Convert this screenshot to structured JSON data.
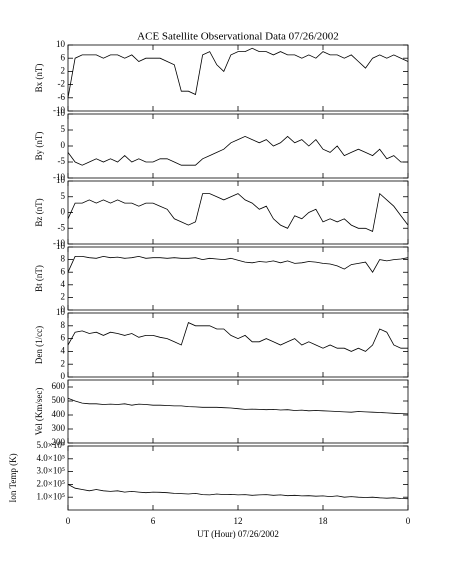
{
  "chart_data": {
    "type": "line",
    "title": "ACE Satellite Observational Data   07/26/2002",
    "xlabel": "UT (Hour)   07/26/2002",
    "xlim": [
      0,
      24
    ],
    "xticks": [
      0,
      6,
      12,
      18,
      {
        "value": 24,
        "label": "0"
      }
    ],
    "x": [
      0,
      0.5,
      1,
      1.5,
      2,
      2.5,
      3,
      3.5,
      4,
      4.5,
      5,
      5.5,
      6,
      6.5,
      7,
      7.5,
      8,
      8.5,
      9,
      9.5,
      10,
      10.5,
      11,
      11.5,
      12,
      12.5,
      13,
      13.5,
      14,
      14.5,
      15,
      15.5,
      16,
      16.5,
      17,
      17.5,
      18,
      18.5,
      19,
      19.5,
      20,
      20.5,
      21,
      21.5,
      22,
      22.5,
      23,
      23.5,
      24
    ],
    "color": "#000000",
    "panels": [
      {
        "ylabel": "Bx (nT)",
        "ylim": [
          -10,
          10
        ],
        "yticks": [
          -10,
          -6,
          -2,
          2,
          6,
          10
        ],
        "values": [
          -6,
          6,
          7,
          7,
          7,
          6,
          7,
          7,
          6,
          7,
          5,
          6,
          6,
          6,
          5,
          4,
          -4,
          -4,
          -5,
          7,
          8,
          4,
          2,
          7,
          8,
          8,
          9,
          8,
          8,
          7,
          8,
          7,
          7,
          6,
          7,
          6,
          8,
          7,
          7,
          6,
          7,
          5,
          3,
          6,
          7,
          6,
          7,
          6,
          5
        ]
      },
      {
        "ylabel": "By (nT)",
        "ylim": [
          -10,
          10
        ],
        "yticks": [
          -10,
          -5,
          0,
          5,
          10
        ],
        "values": [
          -2,
          -5,
          -6,
          -5,
          -4,
          -5,
          -4,
          -5,
          -3,
          -5,
          -4,
          -5,
          -5,
          -4,
          -4,
          -5,
          -6,
          -6,
          -6,
          -4,
          -3,
          -2,
          -1,
          1,
          2,
          3,
          2,
          1,
          2,
          0,
          1,
          3,
          1,
          2,
          0,
          2,
          -1,
          -2,
          0,
          -3,
          -2,
          -1,
          -2,
          -3,
          -1,
          -4,
          -3,
          -5,
          -5
        ]
      },
      {
        "ylabel": "Bz (nT)",
        "ylim": [
          -10,
          10
        ],
        "yticks": [
          -10,
          -5,
          0,
          5,
          10
        ],
        "values": [
          -2,
          3,
          3,
          4,
          3,
          4,
          3,
          4,
          3,
          3,
          2,
          3,
          3,
          2,
          1,
          -2,
          -3,
          -4,
          -3,
          6,
          6,
          5,
          4,
          5,
          6,
          4,
          3,
          1,
          2,
          -2,
          -4,
          -5,
          -1,
          -2,
          0,
          1,
          -3,
          -2,
          -3,
          -2,
          -4,
          -5,
          -5,
          -6,
          6,
          4,
          2,
          -1,
          -4
        ]
      },
      {
        "ylabel": "Bt (nT)",
        "ylim": [
          0,
          10
        ],
        "yticks": [
          0,
          2,
          4,
          6,
          8,
          10
        ],
        "values": [
          6,
          8.5,
          8.5,
          8.3,
          8.2,
          8.5,
          8.3,
          8.4,
          8.2,
          8.3,
          8.5,
          8.2,
          8.3,
          8.3,
          8.2,
          8.3,
          8.2,
          8.2,
          8.3,
          8.0,
          8.2,
          8.1,
          8.0,
          8.2,
          7.9,
          7.6,
          7.5,
          7.7,
          7.6,
          7.8,
          7.5,
          7.8,
          7.4,
          7.5,
          7.7,
          7.6,
          7.4,
          7.3,
          7.0,
          6.5,
          7.2,
          7.4,
          7.6,
          6.0,
          8.0,
          7.8,
          8.0,
          8.1,
          8.3
        ]
      },
      {
        "ylabel": "Den (1/cc)",
        "ylim": [
          0,
          10
        ],
        "yticks": [
          0,
          2,
          4,
          6,
          8,
          10
        ],
        "values": [
          5,
          7,
          7.2,
          6.8,
          7,
          6.5,
          7,
          6.8,
          6.5,
          6.8,
          6.2,
          6.5,
          6.5,
          6.2,
          6,
          5.5,
          5,
          8.5,
          8,
          8,
          8,
          7.5,
          7.5,
          6.5,
          6,
          6.5,
          5.5,
          5.5,
          6,
          5.5,
          5,
          5.5,
          6,
          5,
          5.5,
          5,
          4.5,
          5,
          4.5,
          4.5,
          4,
          4.5,
          4,
          5,
          7.5,
          7,
          5,
          4.5,
          4.5
        ]
      },
      {
        "ylabel": "Vel (Km/sec)",
        "ylim": [
          200,
          650
        ],
        "yticks": [
          200,
          300,
          400,
          500,
          600
        ],
        "values": [
          520,
          500,
          485,
          480,
          480,
          475,
          478,
          475,
          480,
          470,
          478,
          475,
          470,
          470,
          468,
          465,
          465,
          460,
          458,
          455,
          455,
          455,
          452,
          450,
          445,
          440,
          442,
          440,
          438,
          440,
          436,
          438,
          432,
          435,
          430,
          432,
          430,
          428,
          425,
          422,
          420,
          425,
          422,
          420,
          418,
          415,
          412,
          410,
          408
        ]
      },
      {
        "ylabel": "Ion Temp (K)",
        "ylim": [
          0,
          500000
        ],
        "yticks": [
          {
            "value": 100000,
            "label": "1.0×10⁵"
          },
          {
            "value": 200000,
            "label": "2.0×10⁵"
          },
          {
            "value": 300000,
            "label": "3.0×10⁵"
          },
          {
            "value": 400000,
            "label": "4.0×10⁵"
          },
          {
            "value": 500000,
            "label": "5.0×10⁵"
          }
        ],
        "values": [
          200000,
          170000,
          160000,
          150000,
          160000,
          150000,
          145000,
          150000,
          140000,
          145000,
          140000,
          135000,
          140000,
          138000,
          135000,
          130000,
          128000,
          125000,
          130000,
          120000,
          118000,
          125000,
          120000,
          122000,
          118000,
          120000,
          115000,
          118000,
          120000,
          115000,
          118000,
          112000,
          115000,
          110000,
          112000,
          108000,
          110000,
          105000,
          110000,
          100000,
          105000,
          100000,
          98000,
          100000,
          95000,
          92000,
          95000,
          90000,
          88000
        ]
      }
    ]
  }
}
